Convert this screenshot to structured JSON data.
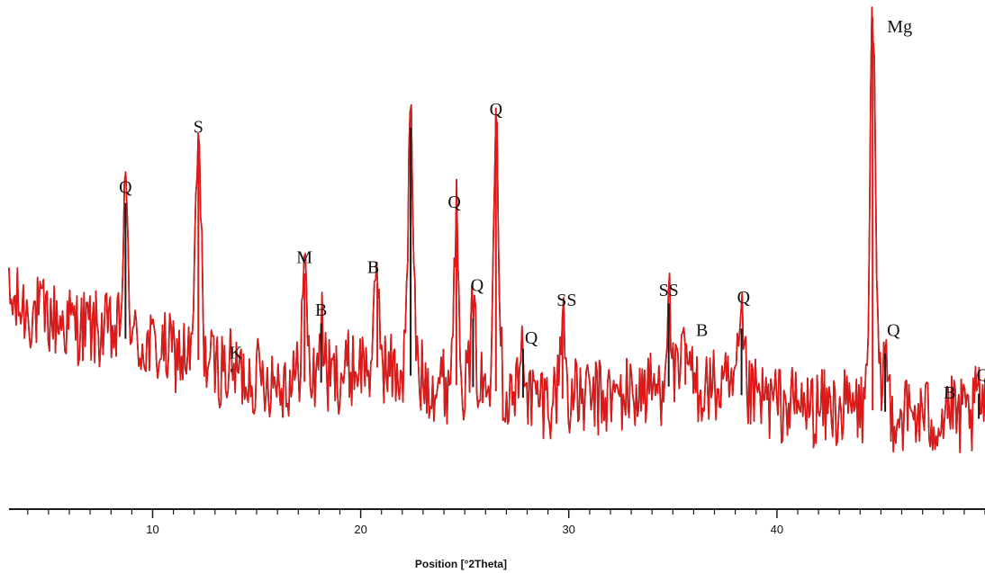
{
  "chart_data": {
    "type": "line",
    "title": "",
    "xlabel": "Position [°2Theta]",
    "ylabel": "",
    "xlim": [
      3.1,
      50
    ],
    "ylim": [
      0,
      100
    ],
    "grid": false,
    "colors": {
      "trace": "#e01818",
      "spikes": "#1a1a1a",
      "axis": "#1a1a1a"
    },
    "x_ticks": [
      10,
      20,
      30,
      40
    ],
    "x_tick_labels": [
      "10",
      "20",
      "30",
      "40"
    ],
    "background": {
      "x": [
        3.1,
        5,
        8,
        10,
        12,
        14,
        16,
        18,
        20,
        22,
        24,
        26,
        28,
        30,
        32,
        34,
        36,
        38,
        40,
        42,
        44,
        46,
        48,
        50
      ],
      "y": [
        41,
        38,
        35,
        32,
        30,
        27,
        26,
        25,
        29,
        27,
        25,
        24,
        22,
        22,
        22,
        24,
        25,
        23,
        21,
        20,
        20,
        19,
        18,
        18
      ]
    },
    "peaks": [
      {
        "x": 8.7,
        "y": 61
      },
      {
        "x": 12.2,
        "y": 73
      },
      {
        "x": 13.8,
        "y": 28
      },
      {
        "x": 17.3,
        "y": 47
      },
      {
        "x": 18.1,
        "y": 37
      },
      {
        "x": 20.8,
        "y": 45
      },
      {
        "x": 22.4,
        "y": 76
      },
      {
        "x": 24.6,
        "y": 58
      },
      {
        "x": 25.4,
        "y": 38
      },
      {
        "x": 26.5,
        "y": 80
      },
      {
        "x": 27.8,
        "y": 32
      },
      {
        "x": 29.7,
        "y": 38
      },
      {
        "x": 34.8,
        "y": 41
      },
      {
        "x": 35.6,
        "y": 33
      },
      {
        "x": 38.3,
        "y": 36
      },
      {
        "x": 44.6,
        "y": 98
      },
      {
        "x": 45.2,
        "y": 31
      },
      {
        "x": 48.2,
        "y": 22
      },
      {
        "x": 49.7,
        "y": 23
      }
    ],
    "annotations": [
      {
        "text": "Q",
        "x": 8.7,
        "y": 63
      },
      {
        "text": "S",
        "x": 12.2,
        "y": 75
      },
      {
        "text": "K",
        "x": 14.0,
        "y": 30
      },
      {
        "text": "M",
        "x": 17.3,
        "y": 49
      },
      {
        "text": "B",
        "x": 18.1,
        "y": 38.5
      },
      {
        "text": "B",
        "x": 20.6,
        "y": 47
      },
      {
        "text": "Q",
        "x": 24.5,
        "y": 60
      },
      {
        "text": "Q",
        "x": 25.6,
        "y": 43.5
      },
      {
        "text": "Q",
        "x": 26.5,
        "y": 78.5
      },
      {
        "text": "Q",
        "x": 28.2,
        "y": 33
      },
      {
        "text": "SS",
        "x": 29.9,
        "y": 40.5
      },
      {
        "text": "SS",
        "x": 34.8,
        "y": 42.5
      },
      {
        "text": "B",
        "x": 36.4,
        "y": 34.5
      },
      {
        "text": "Q",
        "x": 38.4,
        "y": 41
      },
      {
        "text": "Mg",
        "x": 45.9,
        "y": 95
      },
      {
        "text": "Q",
        "x": 45.6,
        "y": 34.5
      },
      {
        "text": "B",
        "x": 48.3,
        "y": 22
      },
      {
        "text": "Q",
        "x": 49.9,
        "y": 25.5
      }
    ]
  }
}
